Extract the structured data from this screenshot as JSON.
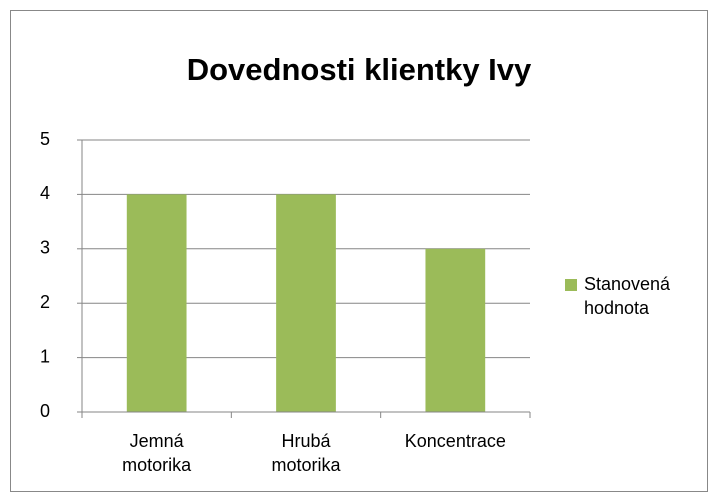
{
  "chart_data": {
    "type": "bar",
    "title": "Dovednosti klientky Ivy",
    "categories": [
      "Jemná motorika",
      "Hrubá motorika",
      "Koncentrace"
    ],
    "series": [
      {
        "name": "Stanovená hodnota",
        "color": "#9bbb59",
        "values": [
          4,
          4,
          3
        ]
      }
    ],
    "ylim": [
      0,
      5
    ],
    "yticks": [
      0,
      1,
      2,
      3,
      4,
      5
    ],
    "grid": true,
    "legend": "right"
  }
}
